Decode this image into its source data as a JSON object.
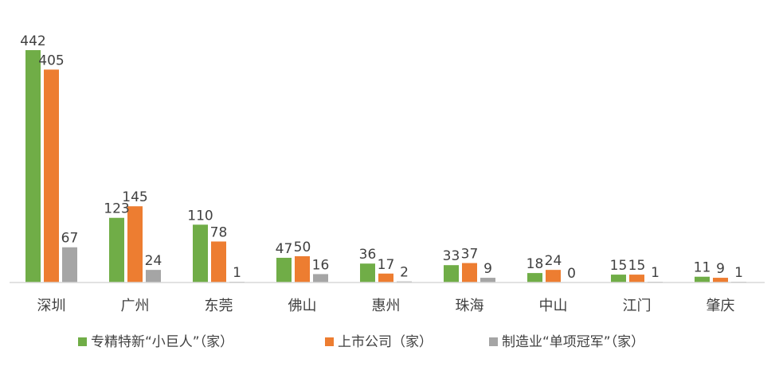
{
  "chart_data": {
    "type": "bar",
    "categories": [
      "深圳",
      "广州",
      "东莞",
      "佛山",
      "惠州",
      "珠海",
      "中山",
      "江门",
      "肇庆"
    ],
    "series": [
      {
        "name": "专精特新“小巨人”（家）",
        "color": "#70ad47",
        "values": [
          442,
          123,
          110,
          47,
          36,
          33,
          18,
          15,
          11
        ]
      },
      {
        "name": "上市公司（家）",
        "color": "#ed7d31",
        "values": [
          405,
          145,
          78,
          50,
          17,
          37,
          24,
          15,
          9
        ]
      },
      {
        "name": "制造业“单项冠军”（家）",
        "color": "#a5a5a5",
        "values": [
          67,
          24,
          1,
          16,
          2,
          9,
          0,
          1,
          1
        ]
      }
    ],
    "title": "",
    "xlabel": "",
    "ylabel": "",
    "ylim": [
      0,
      442
    ],
    "grid": false,
    "legend": "bottom"
  }
}
